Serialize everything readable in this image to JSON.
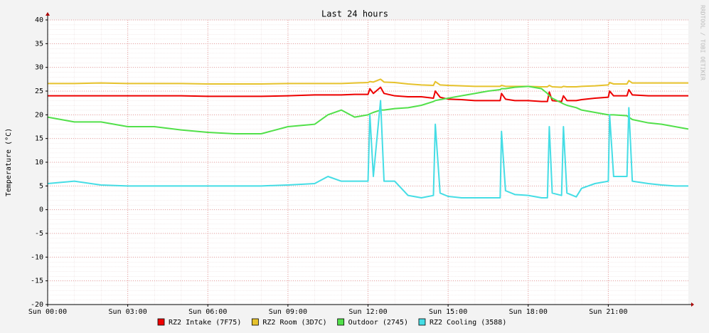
{
  "chart_data": {
    "type": "line",
    "title": "Last 24 hours",
    "y_label": "Temperature (°C)",
    "side_note": "RRDTOOL / TOBI OETIKER",
    "xlim": [
      0,
      24
    ],
    "ylim": [
      -20,
      40
    ],
    "xticks": [
      {
        "value": 0,
        "label": "Sun 00:00"
      },
      {
        "value": 3,
        "label": "Sun 03:00"
      },
      {
        "value": 6,
        "label": "Sun 06:00"
      },
      {
        "value": 9,
        "label": "Sun 09:00"
      },
      {
        "value": 12,
        "label": "Sun 12:00"
      },
      {
        "value": 15,
        "label": "Sun 15:00"
      },
      {
        "value": 18,
        "label": "Sun 18:00"
      },
      {
        "value": 21,
        "label": "Sun 21:00"
      }
    ],
    "yticks": [
      -20,
      -15,
      -10,
      -5,
      0,
      5,
      10,
      15,
      20,
      25,
      30,
      35,
      40
    ],
    "grid": true,
    "x": [
      0,
      1,
      2,
      3,
      4,
      5,
      6,
      7,
      8,
      9,
      10,
      10.5,
      11,
      11.5,
      12,
      12.07,
      12.2,
      12.47,
      12.6,
      13,
      13.5,
      14,
      14.45,
      14.52,
      14.7,
      15,
      15.5,
      16,
      16.5,
      16.95,
      17,
      17.15,
      17.5,
      18,
      18.5,
      18.72,
      18.79,
      18.9,
      19.25,
      19.32,
      19.45,
      19.8,
      20,
      20.5,
      21,
      21.05,
      21.2,
      21.7,
      21.77,
      21.9,
      22.5,
      23,
      23.5,
      24
    ],
    "series": [
      {
        "name": "RZ2 Intake (7F75)",
        "color": "#ee0000",
        "values": [
          24,
          24,
          24,
          24,
          24,
          24,
          23.9,
          23.9,
          23.9,
          24,
          24.2,
          24.2,
          24.2,
          24.3,
          24.3,
          25.5,
          24.5,
          25.8,
          24.5,
          24,
          23.8,
          23.8,
          23.5,
          25,
          23.7,
          23.3,
          23.2,
          23,
          23,
          23,
          24.5,
          23.3,
          23,
          23,
          22.8,
          22.8,
          24.8,
          23,
          22.8,
          24,
          23,
          23,
          23.2,
          23.5,
          23.7,
          25,
          24,
          24,
          25.3,
          24.2,
          24,
          24,
          24,
          24
        ]
      },
      {
        "name": "RZ2 Room (3D7C)",
        "color": "#e6c22c",
        "values": [
          26.6,
          26.6,
          26.7,
          26.6,
          26.6,
          26.6,
          26.5,
          26.5,
          26.5,
          26.6,
          26.6,
          26.6,
          26.6,
          26.7,
          26.8,
          27,
          26.9,
          27.5,
          26.9,
          26.8,
          26.5,
          26.3,
          26.2,
          27,
          26.3,
          26.2,
          26.1,
          26,
          26,
          26,
          26.2,
          26,
          26,
          26,
          25.9,
          25.9,
          26.2,
          25.9,
          25.8,
          26,
          25.9,
          25.9,
          26,
          26.1,
          26.3,
          26.8,
          26.5,
          26.5,
          27.2,
          26.7,
          26.7,
          26.7,
          26.7,
          26.7
        ]
      },
      {
        "name": "Outdoor (2745)",
        "color": "#52e04a",
        "values": [
          19.5,
          18.5,
          18.5,
          17.5,
          17.5,
          16.8,
          16.3,
          16,
          16,
          17.5,
          18,
          20,
          21,
          19.5,
          20,
          20.2,
          20.5,
          21,
          21,
          21.3,
          21.5,
          22,
          22.8,
          23,
          23.2,
          23.5,
          24,
          24.5,
          25,
          25.3,
          25.5,
          25.5,
          25.8,
          26,
          25.5,
          24.5,
          24,
          23.5,
          22.5,
          22.3,
          22,
          21.5,
          21,
          20.5,
          20,
          20,
          20,
          19.8,
          19.5,
          19,
          18.3,
          18,
          17.5,
          17
        ]
      },
      {
        "name": "RZ2 Cooling (3588)",
        "color": "#45dde5",
        "values": [
          5.5,
          6,
          5.2,
          5,
          5,
          5,
          5,
          5,
          5,
          5.2,
          5.5,
          7,
          6,
          6,
          6,
          20,
          7,
          23,
          6,
          6,
          3,
          2.5,
          3,
          18,
          3.5,
          2.8,
          2.5,
          2.5,
          2.5,
          2.5,
          16.5,
          4,
          3.2,
          3,
          2.5,
          2.5,
          17.5,
          3.5,
          3,
          17.5,
          3.5,
          2.7,
          4.5,
          5.5,
          6,
          20,
          7,
          7,
          21.5,
          6,
          5.5,
          5.2,
          5,
          5
        ]
      }
    ]
  }
}
